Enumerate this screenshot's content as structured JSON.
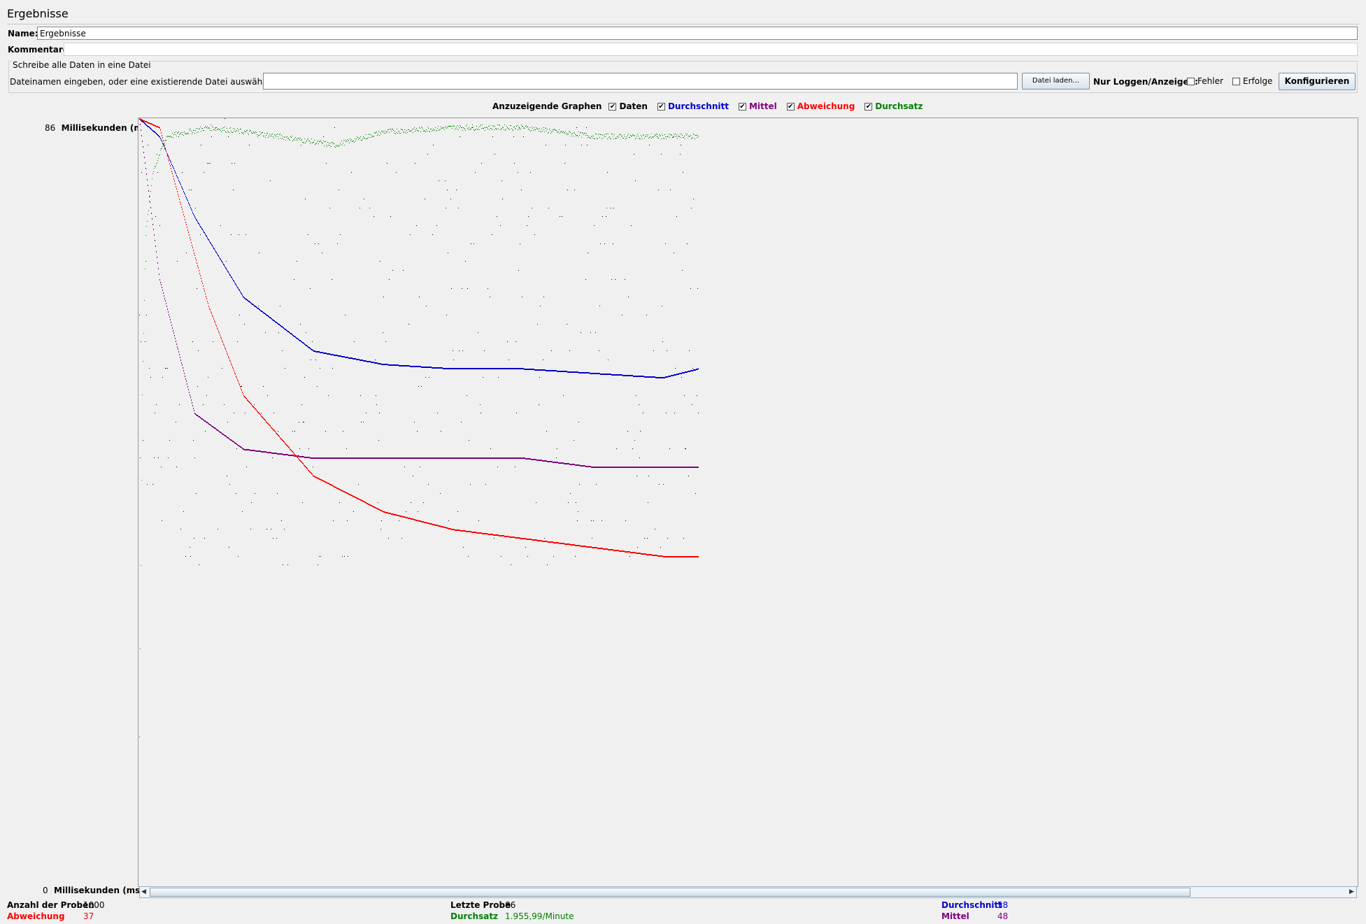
{
  "title": "Ergebnisse",
  "name_label": "Name:",
  "name_value": "Ergebnisse",
  "comments_label": "Kommentare:",
  "comments_value": "",
  "file_group": {
    "legend": "Schreibe alle Daten in eine Datei",
    "filename_label": "Dateinamen eingeben, oder eine existierende Datei auswählen.",
    "filename_value": "",
    "browse_button": "Datei laden...",
    "log_label": "Nur Loggen/Anzeigen:",
    "errors_label": "Fehler",
    "success_label": "Erfolge",
    "configure_button": "Konfigurieren"
  },
  "graphs": {
    "label": "Anzuzeigende Graphen",
    "items": [
      {
        "label": "Daten",
        "checked": true,
        "color": "#000000"
      },
      {
        "label": "Durchschnitt",
        "checked": true,
        "color": "#0000cc"
      },
      {
        "label": "Mittel",
        "checked": true,
        "color": "#800080"
      },
      {
        "label": "Abweichung",
        "checked": true,
        "color": "#ff0000"
      },
      {
        "label": "Durchsatz",
        "checked": true,
        "color": "#008000"
      }
    ]
  },
  "axis": {
    "top_value": "86",
    "top_unit": "Millisekunden (ms)",
    "bottom_value": "0",
    "bottom_unit": "Millisekunden (ms)"
  },
  "stats": {
    "samples_label": "Anzahl der Proben",
    "samples_value": "1000",
    "deviation_label": "Abweichung",
    "deviation_value": "37",
    "last_label": "Letzte Probe",
    "last_value": "86",
    "throughput_label": "Durchsatz",
    "throughput_value": "1.955,99/Minute",
    "average_label": "Durchschnitt",
    "average_value": "58",
    "median_label": "Mittel",
    "median_value": "48"
  },
  "chart_data": {
    "type": "scatter",
    "ylim": [
      0,
      86
    ],
    "xlim": [
      0,
      1000
    ],
    "series": [
      {
        "name": "Durchschnitt",
        "color": "#0000cc",
        "final": 58,
        "points": [
          [
            1,
            86
          ],
          [
            30,
            84
          ],
          [
            80,
            75
          ],
          [
            150,
            66
          ],
          [
            250,
            60
          ],
          [
            350,
            58.5
          ],
          [
            450,
            58
          ],
          [
            550,
            58
          ],
          [
            650,
            57.5
          ],
          [
            750,
            57
          ],
          [
            800,
            58
          ]
        ]
      },
      {
        "name": "Mittel",
        "color": "#800080",
        "final": 48,
        "points": [
          [
            1,
            86
          ],
          [
            30,
            68
          ],
          [
            80,
            53
          ],
          [
            150,
            49
          ],
          [
            250,
            48
          ],
          [
            350,
            48
          ],
          [
            450,
            48
          ],
          [
            550,
            48
          ],
          [
            650,
            47
          ],
          [
            750,
            47
          ],
          [
            800,
            47
          ]
        ]
      },
      {
        "name": "Abweichung",
        "color": "#ff0000",
        "final": 37,
        "points": [
          [
            1,
            86
          ],
          [
            30,
            85
          ],
          [
            100,
            65
          ],
          [
            150,
            55
          ],
          [
            250,
            46
          ],
          [
            350,
            42
          ],
          [
            450,
            40
          ],
          [
            550,
            39
          ],
          [
            650,
            38
          ],
          [
            750,
            37
          ],
          [
            800,
            37
          ]
        ]
      },
      {
        "name": "Durchsatz",
        "color": "#008000",
        "points": [
          [
            1,
            17
          ],
          [
            5,
            55
          ],
          [
            10,
            73
          ],
          [
            20,
            80
          ],
          [
            40,
            84
          ],
          [
            100,
            85
          ],
          [
            200,
            84
          ],
          [
            280,
            83
          ],
          [
            350,
            84.5
          ],
          [
            450,
            85
          ],
          [
            550,
            85
          ],
          [
            650,
            84
          ],
          [
            700,
            84
          ],
          [
            800,
            84
          ]
        ]
      }
    ],
    "data_band": {
      "name": "Daten",
      "color": "#000000",
      "min": 36,
      "max": 86
    }
  }
}
